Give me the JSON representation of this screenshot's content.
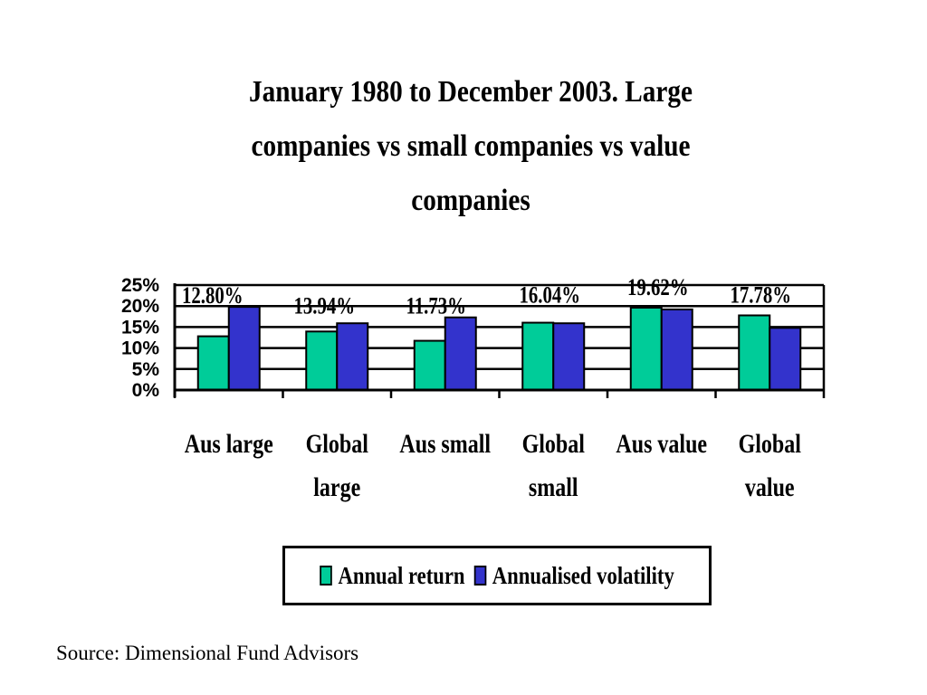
{
  "chart_data": {
    "type": "bar",
    "title": "January 1980 to December 2003.  Large companies vs small companies vs value companies",
    "title_lines": [
      "January 1980 to December 2003.  Large",
      "companies vs small companies vs value",
      "companies"
    ],
    "categories": [
      [
        "Aus large"
      ],
      [
        "Global",
        "large"
      ],
      [
        "Aus small"
      ],
      [
        "Global",
        "small"
      ],
      [
        "Aus value"
      ],
      [
        "Global",
        "value"
      ]
    ],
    "series": [
      {
        "name": "Annual return",
        "color": "#00cc99",
        "values": [
          12.8,
          13.94,
          11.73,
          16.04,
          19.62,
          17.78
        ]
      },
      {
        "name": "Annualised volatility",
        "color": "#3333cc",
        "values": [
          19.8,
          15.9,
          17.3,
          15.9,
          19.2,
          14.8
        ]
      }
    ],
    "data_labels": [
      "12.80%",
      "13.94%",
      "11.73%",
      "16.04%",
      "19.62%",
      "17.78%"
    ],
    "yticks": [
      "0%",
      "5%",
      "10%",
      "15%",
      "20%",
      "25%"
    ],
    "ylim": [
      0,
      25
    ],
    "grid": true,
    "legend_position": "bottom-center"
  },
  "source": "Source: Dimensional Fund Advisors"
}
